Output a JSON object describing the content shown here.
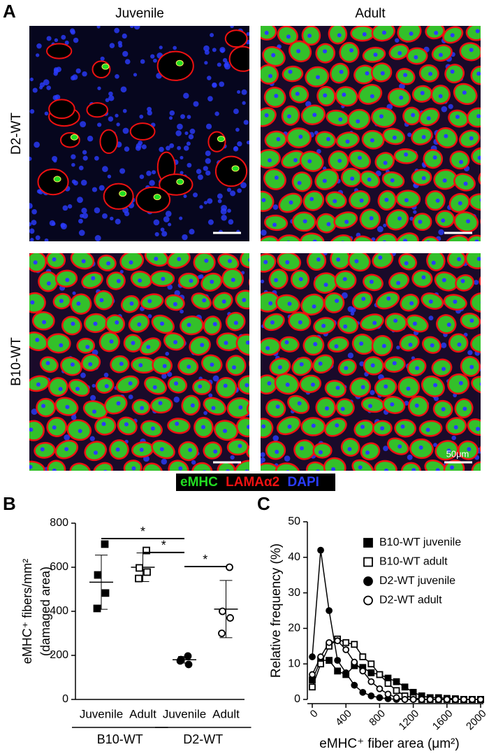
{
  "figure": {
    "panel_labels": [
      "A",
      "B",
      "C"
    ],
    "columns": [
      "Juvenile",
      "Adult"
    ],
    "rows": [
      "D2-WT",
      "B10-WT"
    ],
    "scale_bar": "50μm",
    "stains": [
      {
        "name": "eMHC",
        "color": "#22dd22"
      },
      {
        "name": "LAMAα2",
        "color": "#ee1111"
      },
      {
        "name": "DAPI",
        "color": "#2a3cff"
      }
    ]
  },
  "chart_data": [
    {
      "type": "dot_plot",
      "y_label": [
        "eMHC⁺ fibers/mm²",
        "(damaged area)"
      ],
      "categories": [
        "Juvenile",
        "Adult",
        "Juvenile",
        "Adult"
      ],
      "groups": [
        "B10-WT",
        "D2-WT"
      ],
      "markers": [
        "filled-square",
        "open-square",
        "filled-circle",
        "open-circle"
      ],
      "points": [
        [
          705,
          565,
          483,
          413
        ],
        [
          676,
          597,
          578,
          549
        ],
        [
          197,
          181,
          159,
          175
        ],
        [
          600,
          400,
          370,
          300
        ]
      ],
      "mean": [
        532,
        600,
        180,
        410
      ],
      "sd": [
        123,
        65,
        15,
        130
      ],
      "ylim": [
        0,
        800
      ],
      "yticks": [
        0,
        200,
        400,
        600,
        800
      ],
      "significance": [
        {
          "label": "*",
          "from": 0,
          "to": 2,
          "y": 730
        },
        {
          "label": "*",
          "from": 1,
          "to": 2,
          "y": 667
        },
        {
          "label": "*",
          "from": 2,
          "to": 3,
          "y": 603
        }
      ]
    },
    {
      "type": "line",
      "x_label": "eMHC⁺ fiber area (μm²)",
      "y_label": "Relative frequency (%)",
      "x": [
        0,
        100,
        200,
        300,
        400,
        500,
        600,
        700,
        800,
        900,
        1000,
        1100,
        1200,
        1300,
        1400,
        1500,
        1600,
        1700,
        1800,
        1900,
        2000
      ],
      "xlim": [
        0,
        2000
      ],
      "xticks": [
        0,
        400,
        800,
        1200,
        1600,
        2000
      ],
      "ylim": [
        0,
        50
      ],
      "yticks": [
        0,
        10,
        20,
        30,
        40,
        50
      ],
      "legend": "top-right",
      "series": [
        {
          "name": "B10-WT juvenile",
          "color": "#000000",
          "marker": "filled-square",
          "values": [
            5.5,
            11,
            11,
            8,
            7,
            9.5,
            9,
            7.5,
            7,
            6,
            5,
            3.5,
            2,
            1,
            0.5,
            0.5,
            0.3,
            0.2,
            0,
            0,
            0
          ]
        },
        {
          "name": "B10-WT adult",
          "color": "#000000",
          "marker": "open-square",
          "values": [
            3.5,
            10,
            15,
            17,
            16,
            15.5,
            12,
            10,
            7,
            4.5,
            2.5,
            1,
            0.5,
            0,
            0,
            0,
            0,
            0,
            0,
            0,
            0
          ]
        },
        {
          "name": "D2-WT juvenile",
          "color": "#000000",
          "marker": "filled-circle",
          "values": [
            12,
            42,
            25,
            11,
            7.5,
            4,
            2,
            1,
            0.5,
            0.2,
            0,
            0,
            0,
            0,
            0,
            0,
            0,
            0,
            0,
            0,
            0
          ]
        },
        {
          "name": "D2-WT adult",
          "color": "#000000",
          "marker": "open-circle",
          "values": [
            7,
            12,
            16,
            16.5,
            14,
            10.5,
            8,
            5,
            3,
            1.5,
            0.5,
            0,
            0,
            0,
            0,
            0,
            0,
            0,
            0,
            0,
            0
          ]
        }
      ]
    }
  ]
}
